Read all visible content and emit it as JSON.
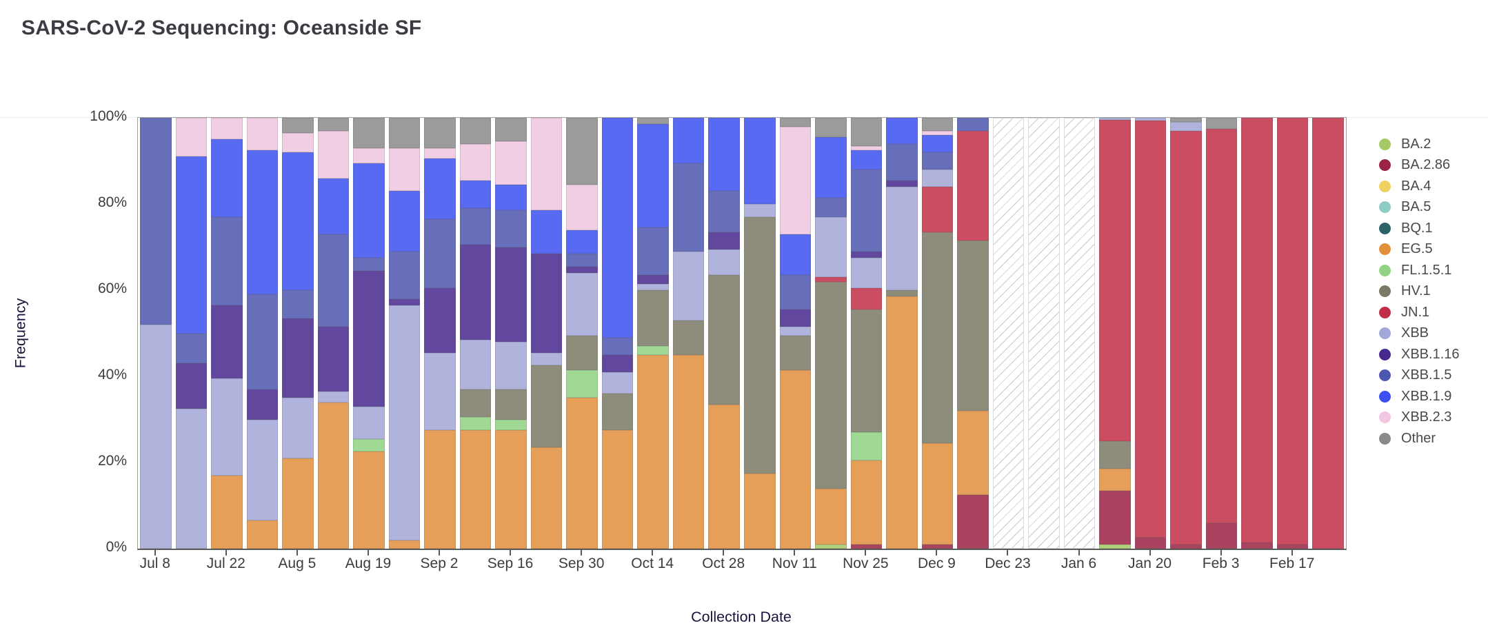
{
  "title": "SARS-CoV-2 Sequencing: Oceanside SF",
  "y_axis": {
    "title": "Frequency",
    "ticks": [
      "0%",
      "20%",
      "40%",
      "60%",
      "80%",
      "100%"
    ]
  },
  "x_axis": {
    "title": "Collection Date",
    "tick_labels": [
      "Jul 8",
      "Jul 22",
      "Aug 5",
      "Aug 19",
      "Sep 2",
      "Sep 16",
      "Sep 30",
      "Oct 14",
      "Oct 28",
      "Nov 11",
      "Nov 25",
      "Dec 9",
      "Dec 23",
      "Jan 6",
      "Jan 20",
      "Feb 3",
      "Feb 17"
    ]
  },
  "legend": {
    "position": "right",
    "entries": [
      {
        "label": "BA.2",
        "color": "#a5c964"
      },
      {
        "label": "BA.2.86",
        "color": "#9b2344"
      },
      {
        "label": "BA.4",
        "color": "#f0d05e"
      },
      {
        "label": "BA.5",
        "color": "#8fccc4"
      },
      {
        "label": "BQ.1",
        "color": "#2d6368"
      },
      {
        "label": "EG.5",
        "color": "#e28f3c"
      },
      {
        "label": "FL.1.5.1",
        "color": "#90d382"
      },
      {
        "label": "HV.1",
        "color": "#7b7a66"
      },
      {
        "label": "JN.1",
        "color": "#c22e47"
      },
      {
        "label": "XBB",
        "color": "#a3a8d8"
      },
      {
        "label": "XBB.1.16",
        "color": "#46298e"
      },
      {
        "label": "XBB.1.5",
        "color": "#4d57b0"
      },
      {
        "label": "XBB.1.9",
        "color": "#3c4ff0"
      },
      {
        "label": "XBB.2.3",
        "color": "#f0c6e1"
      },
      {
        "label": "Other",
        "color": "#8a8a8a"
      }
    ]
  },
  "chart_data": {
    "type": "bar",
    "subtype": "stacked-percent",
    "title": "SARS-CoV-2 Sequencing: Oceanside SF",
    "xlabel": "Collection Date",
    "ylabel": "Frequency",
    "ylim": [
      0,
      100
    ],
    "grid": false,
    "legend_position": "right",
    "no_data_style": "diagonal-hatch",
    "stack_order": [
      "BA.2",
      "BA.2.86",
      "BA.4",
      "BA.5",
      "BQ.1",
      "EG.5",
      "FL.1.5.1",
      "HV.1",
      "JN.1",
      "XBB",
      "XBB.1.16",
      "XBB.1.5",
      "XBB.1.9",
      "XBB.2.3",
      "Other"
    ],
    "palette": {
      "BA.2": "#a5c964",
      "BA.2.86": "#9b2344",
      "BA.4": "#f0d05e",
      "BA.5": "#8fccc4",
      "BQ.1": "#2d6368",
      "EG.5": "#e28f3c",
      "FL.1.5.1": "#90d382",
      "HV.1": "#7b7a66",
      "JN.1": "#c22e47",
      "XBB": "#a3a8d8",
      "XBB.1.16": "#46298e",
      "XBB.1.5": "#4d57b0",
      "XBB.1.9": "#3c4ff0",
      "XBB.2.3": "#f0c6e1",
      "Other": "#8a8a8a"
    },
    "bars": [
      {
        "date": "Jul 8",
        "no_data": false,
        "segments": {
          "XBB": 52,
          "XBB.1.5": 48
        }
      },
      {
        "date": "Jul 15",
        "no_data": false,
        "segments": {
          "XBB": 32.5,
          "XBB.1.16": 10.5,
          "XBB.1.5": 7,
          "XBB.1.9": 41,
          "XBB.2.3": 9
        }
      },
      {
        "date": "Jul 22",
        "no_data": false,
        "segments": {
          "EG.5": 17,
          "XBB": 22.5,
          "XBB.1.16": 17,
          "XBB.1.5": 20.5,
          "XBB.1.9": 18,
          "XBB.2.3": 5
        }
      },
      {
        "date": "Jul 29",
        "no_data": false,
        "segments": {
          "EG.5": 6.5,
          "XBB": 23.5,
          "XBB.1.16": 7,
          "XBB.1.5": 22,
          "XBB.1.9": 33.5,
          "XBB.2.3": 7.5
        }
      },
      {
        "date": "Aug 5",
        "no_data": false,
        "segments": {
          "EG.5": 21,
          "XBB": 14,
          "XBB.1.16": 18.5,
          "XBB.1.5": 6.5,
          "XBB.1.9": 32,
          "XBB.2.3": 4.5,
          "Other": 3.5
        }
      },
      {
        "date": "Aug 12",
        "no_data": false,
        "segments": {
          "EG.5": 34,
          "XBB": 2.5,
          "XBB.1.16": 15,
          "XBB.1.5": 21.5,
          "XBB.1.9": 13,
          "XBB.2.3": 11,
          "Other": 3
        }
      },
      {
        "date": "Aug 19",
        "no_data": false,
        "segments": {
          "EG.5": 22.5,
          "FL.1.5.1": 3,
          "XBB": 7.5,
          "XBB.1.16": 31.5,
          "XBB.1.5": 3,
          "XBB.1.9": 22,
          "XBB.2.3": 3.5,
          "Other": 7
        }
      },
      {
        "date": "Aug 26",
        "no_data": false,
        "segments": {
          "EG.5": 2,
          "XBB": 54.5,
          "XBB.1.16": 1.5,
          "XBB.1.5": 11,
          "XBB.1.9": 14,
          "XBB.2.3": 10,
          "Other": 7
        }
      },
      {
        "date": "Sep 2",
        "no_data": false,
        "segments": {
          "EG.5": 27.5,
          "XBB": 18,
          "XBB.1.16": 15,
          "XBB.1.5": 16,
          "XBB.1.9": 14,
          "XBB.2.3": 2.5,
          "Other": 7
        }
      },
      {
        "date": "Sep 9",
        "no_data": false,
        "segments": {
          "EG.5": 27.5,
          "FL.1.5.1": 3,
          "HV.1": 6.5,
          "XBB": 11.5,
          "XBB.1.16": 22,
          "XBB.1.5": 8.5,
          "XBB.1.9": 6.5,
          "XBB.2.3": 8.5,
          "Other": 6
        }
      },
      {
        "date": "Sep 16",
        "no_data": false,
        "segments": {
          "EG.5": 27.5,
          "FL.1.5.1": 2.5,
          "HV.1": 7,
          "XBB": 11,
          "XBB.1.16": 22,
          "XBB.1.5": 8.5,
          "XBB.1.9": 6,
          "XBB.2.3": 10,
          "Other": 5.5
        }
      },
      {
        "date": "Sep 23",
        "no_data": false,
        "segments": {
          "EG.5": 23.5,
          "HV.1": 19,
          "XBB": 3,
          "XBB.1.16": 23,
          "XBB.1.9": 10,
          "XBB.2.3": 21.5
        }
      },
      {
        "date": "Sep 30",
        "no_data": false,
        "segments": {
          "EG.5": 35,
          "FL.1.5.1": 6.5,
          "HV.1": 8,
          "XBB": 14.5,
          "XBB.1.16": 1.5,
          "XBB.1.5": 3,
          "XBB.1.9": 5.5,
          "XBB.2.3": 10.5,
          "Other": 15.5
        }
      },
      {
        "date": "Oct 7",
        "no_data": false,
        "segments": {
          "EG.5": 27.5,
          "HV.1": 8.5,
          "XBB": 5,
          "XBB.1.16": 4,
          "XBB.1.5": 4,
          "XBB.1.9": 51
        }
      },
      {
        "date": "Oct 14",
        "no_data": false,
        "segments": {
          "EG.5": 45,
          "FL.1.5.1": 2,
          "HV.1": 13,
          "XBB": 1.5,
          "XBB.1.16": 2,
          "XBB.1.5": 11,
          "XBB.1.9": 24,
          "Other": 1.5
        }
      },
      {
        "date": "Oct 21",
        "no_data": false,
        "segments": {
          "EG.5": 45,
          "HV.1": 8,
          "XBB": 16,
          "XBB.1.5": 20.5,
          "XBB.1.9": 10.5
        }
      },
      {
        "date": "Oct 28",
        "no_data": false,
        "segments": {
          "EG.5": 33.5,
          "HV.1": 30,
          "XBB": 6,
          "XBB.1.16": 4,
          "XBB.1.5": 9.5,
          "XBB.1.9": 17
        }
      },
      {
        "date": "Nov 4",
        "no_data": false,
        "segments": {
          "EG.5": 17.5,
          "HV.1": 59.5,
          "XBB": 3,
          "XBB.1.9": 20
        }
      },
      {
        "date": "Nov 11",
        "no_data": false,
        "segments": {
          "EG.5": 41.5,
          "HV.1": 8,
          "XBB": 2,
          "XBB.1.16": 4,
          "XBB.1.5": 8,
          "XBB.1.9": 9.5,
          "XBB.2.3": 25,
          "Other": 2
        }
      },
      {
        "date": "Nov 18",
        "no_data": false,
        "segments": {
          "BA.2": 1,
          "EG.5": 13,
          "HV.1": 48,
          "JN.1": 1,
          "XBB": 14,
          "XBB.1.5": 4.5,
          "XBB.1.9": 14,
          "Other": 4.5
        }
      },
      {
        "date": "Nov 25",
        "no_data": false,
        "segments": {
          "BA.2.86": 1,
          "EG.5": 19.5,
          "FL.1.5.1": 6.5,
          "HV.1": 28.5,
          "JN.1": 5,
          "XBB": 7,
          "XBB.1.16": 1.5,
          "XBB.1.5": 19,
          "XBB.1.9": 4.5,
          "XBB.2.3": 1,
          "Other": 6.5
        }
      },
      {
        "date": "Dec 2",
        "no_data": false,
        "segments": {
          "EG.5": 58.5,
          "HV.1": 1.5,
          "XBB": 24,
          "XBB.1.16": 1.5,
          "XBB.1.5": 8.5,
          "XBB.1.9": 6
        }
      },
      {
        "date": "Dec 9",
        "no_data": false,
        "segments": {
          "BA.2.86": 1,
          "EG.5": 23.5,
          "HV.1": 49,
          "JN.1": 10.5,
          "XBB": 4,
          "XBB.1.5": 4,
          "XBB.1.9": 4,
          "XBB.2.3": 1,
          "Other": 3
        }
      },
      {
        "date": "Dec 16",
        "no_data": false,
        "segments": {
          "BA.2.86": 12.5,
          "EG.5": 19.5,
          "HV.1": 39.5,
          "JN.1": 25.5,
          "XBB.1.5": 3
        }
      },
      {
        "date": "Dec 23",
        "no_data": true,
        "segments": {}
      },
      {
        "date": "Dec 30",
        "no_data": true,
        "segments": {}
      },
      {
        "date": "Jan 6",
        "no_data": true,
        "segments": {}
      },
      {
        "date": "Jan 13",
        "no_data": false,
        "segments": {
          "BA.2": 1,
          "BA.2.86": 12.5,
          "EG.5": 5,
          "HV.1": 6.5,
          "JN.1": 74.5,
          "XBB": 0.5
        }
      },
      {
        "date": "Jan 20",
        "no_data": false,
        "segments": {
          "BA.2.86": 2.5,
          "JN.1": 96.8,
          "XBB": 0.7
        }
      },
      {
        "date": "Jan 27",
        "no_data": false,
        "segments": {
          "BA.2.86": 1,
          "JN.1": 96,
          "XBB": 2,
          "Other": 1
        }
      },
      {
        "date": "Feb 3",
        "no_data": false,
        "segments": {
          "BA.2.86": 6,
          "JN.1": 91.5,
          "Other": 2.5
        }
      },
      {
        "date": "Feb 10",
        "no_data": false,
        "segments": {
          "BA.2.86": 1.5,
          "JN.1": 98.5
        }
      },
      {
        "date": "Feb 17",
        "no_data": false,
        "segments": {
          "BA.2.86": 1,
          "JN.1": 99
        }
      },
      {
        "date": "Feb 24",
        "no_data": false,
        "segments": {
          "JN.1": 100
        }
      }
    ]
  }
}
